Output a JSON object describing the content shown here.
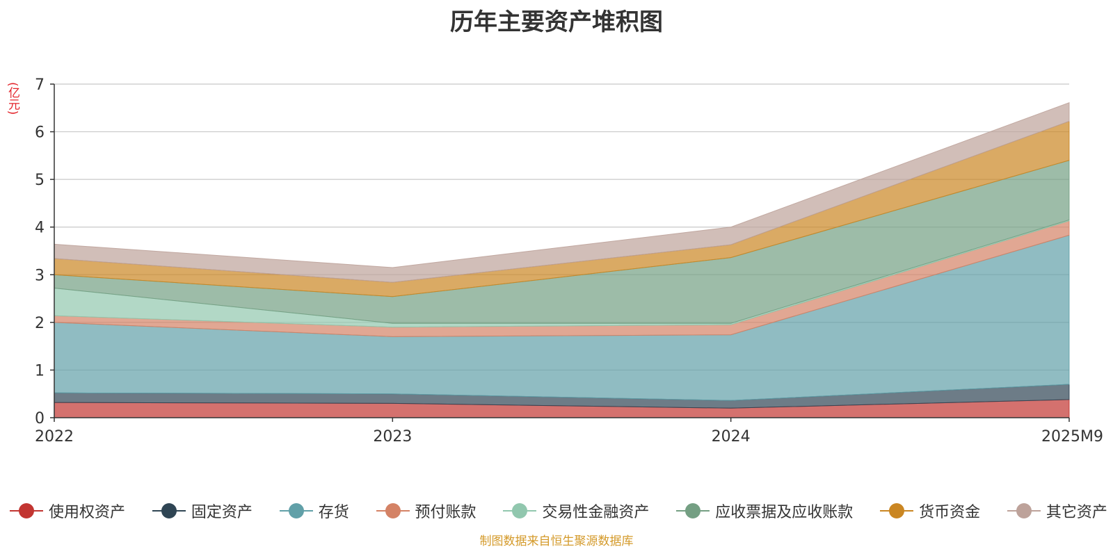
{
  "title": "历年主要资产堆积图",
  "unit_label": "(亿元)",
  "source": "制图数据来自恒生聚源数据库",
  "chart_data": {
    "type": "area",
    "stacked": true,
    "title": "历年主要资产堆积图",
    "ylabel": "(亿元)",
    "x": [
      "2022",
      "2023",
      "2024",
      "2025M9"
    ],
    "ylim": [
      0,
      7
    ],
    "yticks": [
      "0",
      "1",
      "2",
      "3",
      "4",
      "5",
      "6",
      "7"
    ],
    "grid": true,
    "legend_position": "bottom",
    "series": [
      {
        "name": "使用权资产",
        "color": "#c23531",
        "values": [
          0.32,
          0.3,
          0.2,
          0.38
        ]
      },
      {
        "name": "固定资产",
        "color": "#2f4554",
        "values": [
          0.2,
          0.2,
          0.16,
          0.32
        ]
      },
      {
        "name": "存货",
        "color": "#61a0a8",
        "values": [
          1.48,
          1.2,
          1.38,
          3.13
        ]
      },
      {
        "name": "预付账款",
        "color": "#d48265",
        "values": [
          0.14,
          0.2,
          0.21,
          0.3
        ]
      },
      {
        "name": "交易性金融资产",
        "color": "#91c7ae",
        "values": [
          0.58,
          0.08,
          0.03,
          0.02
        ]
      },
      {
        "name": "应收票据及应收账款",
        "color": "#749f83",
        "values": [
          0.28,
          0.56,
          1.38,
          1.25
        ]
      },
      {
        "name": "货币资金",
        "color": "#ca8622",
        "values": [
          0.34,
          0.3,
          0.27,
          0.82
        ]
      },
      {
        "name": "其它资产",
        "color": "#bda29a",
        "values": [
          0.3,
          0.31,
          0.37,
          0.39
        ]
      }
    ]
  }
}
